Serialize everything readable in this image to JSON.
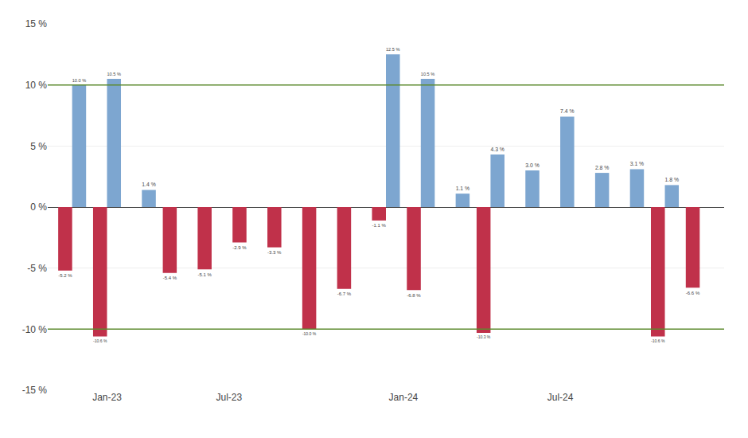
{
  "chart_data": {
    "type": "bar",
    "x": [
      1,
      2,
      3,
      4,
      5,
      6,
      7,
      8,
      9,
      10,
      11,
      12,
      13,
      14,
      15,
      16,
      17,
      18,
      19
    ],
    "series": [
      {
        "color": "#c0314a",
        "values": [
          -5.2,
          -10.6,
          0.0,
          -5.4,
          -5.1,
          -2.9,
          -3.3,
          -10.0,
          -6.7,
          -1.1,
          -6.8,
          0.0,
          -10.3,
          0.0,
          0.0,
          0.0,
          0.0,
          -10.6,
          -6.6
        ],
        "value_labels": [
          "-5.2 %",
          "-10.6 %",
          null,
          "-5.4 %",
          "-5.1 %",
          "-2.9 %",
          "-3.3 %",
          "-10.0 %",
          "-6.7 %",
          "-1.1 %",
          "-6.8 %",
          null,
          "-10.3 %",
          null,
          null,
          null,
          null,
          "-10.6 %",
          "-6.6 %"
        ]
      },
      {
        "color": "#7da6d0",
        "values": [
          10.0,
          10.5,
          1.4,
          0.0,
          0.0,
          0.0,
          0.0,
          0.0,
          0.0,
          12.5,
          10.5,
          1.1,
          4.3,
          3.0,
          7.4,
          2.8,
          3.1,
          1.8,
          0.0
        ],
        "value_labels": [
          "10.0 %",
          "10.5 %",
          "1.4 %",
          null,
          null,
          null,
          null,
          null,
          null,
          "12.5 %",
          "10.5 %",
          "1.1 %",
          "4.3 %",
          "3.0 %",
          "7.4 %",
          "2.8 %",
          "3.1 %",
          "1.8 %",
          null
        ]
      }
    ],
    "xlim": [
      0.3,
      19.7
    ],
    "xticks": [
      {
        "value": 2.0,
        "label": "Jan-23"
      },
      {
        "value": 5.5,
        "label": "Jul-23"
      },
      {
        "value": 10.5,
        "label": "Jan-24"
      },
      {
        "value": 15.0,
        "label": "Jul-24"
      }
    ],
    "ylim": [
      -15,
      15
    ],
    "yticks": [
      {
        "value": -15,
        "label": "-15 %"
      },
      {
        "value": -10,
        "label": "-10 %"
      },
      {
        "value": -5,
        "label": "-5 %"
      },
      {
        "value": 0,
        "label": "0 %"
      },
      {
        "value": 5,
        "label": "5 %"
      },
      {
        "value": 10,
        "label": "10 %"
      },
      {
        "value": 15,
        "label": "15 %"
      }
    ],
    "reference_lines": [
      {
        "value": 10.0,
        "color": "#5c8a2e"
      },
      {
        "value": -10.0,
        "color": "#5c8a2e"
      }
    ],
    "grid": true,
    "data_labels": true
  }
}
